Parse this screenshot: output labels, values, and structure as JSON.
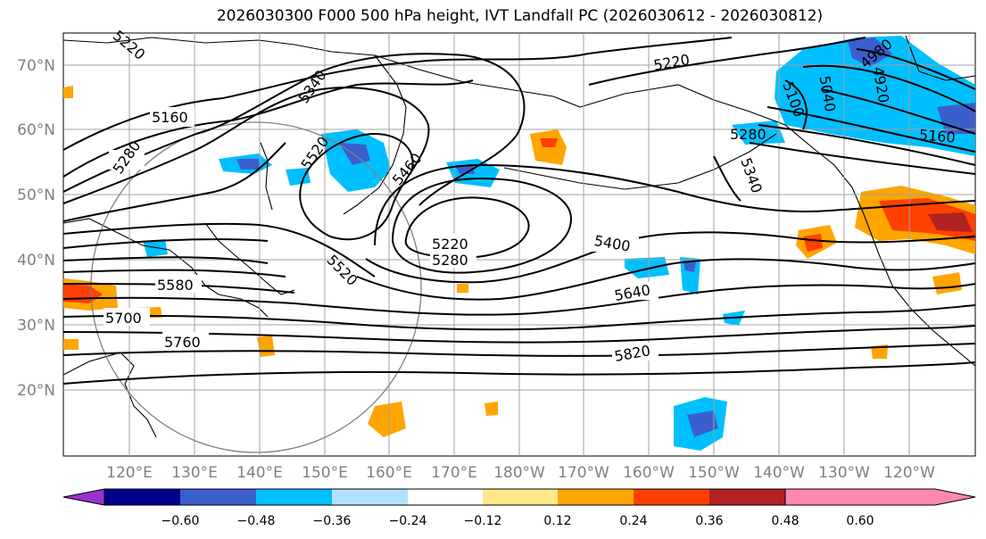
{
  "title": "2026030300 F000 500 hPa height, IVT Landfall PC (2026030612 - 2026030812)",
  "lat_labels": [
    "70°N",
    "60°N",
    "50°N",
    "40°N",
    "30°N",
    "20°N"
  ],
  "lon_labels": [
    "120°E",
    "130°E",
    "140°E",
    "150°E",
    "160°E",
    "170°E",
    "180°W",
    "170°W",
    "160°W",
    "150°W",
    "140°W",
    "130°W",
    "120°W"
  ],
  "contour_labels": [
    "5160",
    "5280",
    "5340",
    "5520",
    "5460",
    "5220",
    "5280",
    "5400",
    "5640",
    "5580",
    "5700",
    "5760",
    "5820",
    "5520",
    "5220",
    "5100",
    "5040",
    "4980",
    "4920",
    "5160",
    "5280",
    "5340",
    "5220"
  ],
  "colorbar": {
    "ticks": [
      "−0.60",
      "−0.48",
      "−0.36",
      "−0.24",
      "−0.12",
      "0.12",
      "0.24",
      "0.36",
      "0.48",
      "0.60"
    ],
    "colors": [
      "#9932CC",
      "#00008B",
      "#3A5FCD",
      "#00BFFF",
      "#B0E2FF",
      "#FFFFFF",
      "#FFE88A",
      "#FFA500",
      "#FF4000",
      "#B22222",
      "#FF88B0"
    ]
  },
  "colors": {
    "accent": "#00BFFF",
    "warm": "#FFA500",
    "contour": "#000000",
    "grid": "#A0A0A0"
  }
}
